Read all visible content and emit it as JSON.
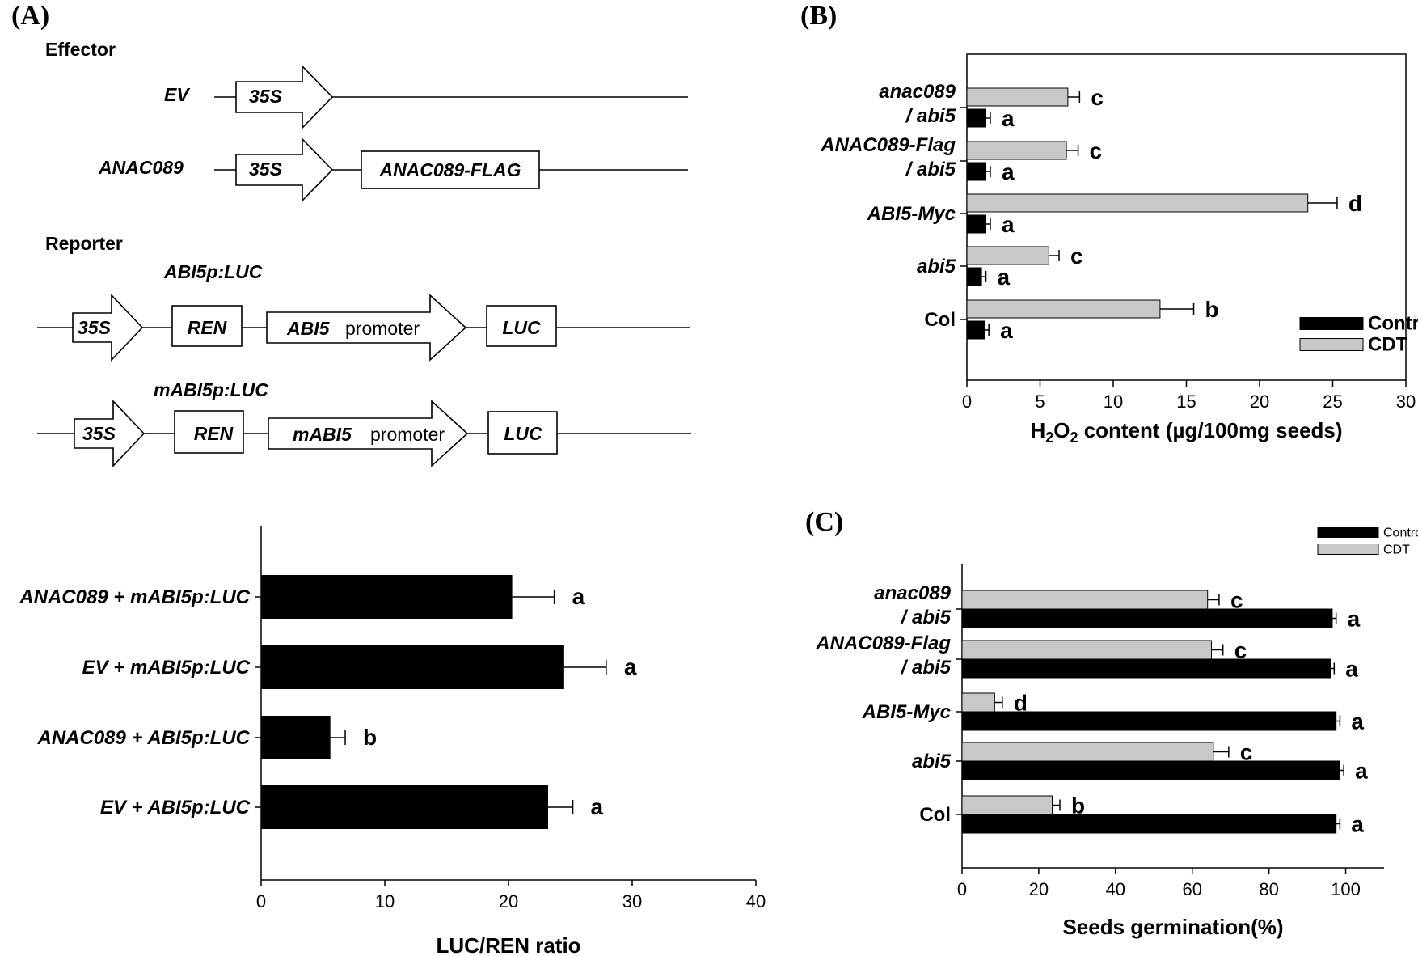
{
  "panels": {
    "a": "(A)",
    "b": "(B)",
    "c": "(C)"
  },
  "diagram": {
    "effector_title": "Effector",
    "reporter_title": "Reporter",
    "ev_label": "EV",
    "anac_label": "ANAC089",
    "promoter_35s": "35S",
    "anac_flag": "ANAC089-FLAG",
    "abi5p_luc_title": "ABI5p:LUC",
    "mabi5p_luc_title": "mABI5p:LUC",
    "ren": "REN",
    "abi5_promoter_italic": "ABI5",
    "mabi5_promoter_italic": "mABI5",
    "promoter_word": "promoter",
    "luc": "LUC"
  },
  "chart_data": [
    {
      "id": "A-bottom",
      "type": "bar",
      "orientation": "horizontal",
      "categories": [
        "ANAC089 + mABI5p:LUC",
        "EV + mABI5p:LUC",
        "ANAC089 + ABI5p:LUC",
        "EV + ABI5p:LUC"
      ],
      "values": [
        20.3,
        24.5,
        5.6,
        23.2
      ],
      "errors": [
        3.4,
        3.4,
        1.2,
        2.0
      ],
      "letters": [
        "a",
        "a",
        "b",
        "a"
      ],
      "xlabel": "LUC/REN ratio",
      "xlim": [
        0,
        40
      ],
      "xticks": [
        0,
        10,
        20,
        30,
        40
      ],
      "color": "#000000"
    },
    {
      "id": "B",
      "type": "bar",
      "orientation": "horizontal",
      "categories": [
        "anac089 / abi5",
        "ANAC089-Flag / abi5",
        "ABI5-Myc",
        "abi5",
        "Col"
      ],
      "category_lines": [
        [
          "anac089",
          "/ abi5"
        ],
        [
          "ANAC089-Flag",
          "/ abi5"
        ],
        [
          "ABI5-Myc"
        ],
        [
          "abi5"
        ],
        [
          "Col"
        ]
      ],
      "category_italic": [
        true,
        true,
        true,
        true,
        false
      ],
      "series": [
        {
          "name": "CDT",
          "color": "#c8c8c8",
          "values": [
            6.9,
            6.8,
            23.3,
            5.6,
            13.2
          ],
          "errors": [
            0.8,
            0.8,
            2.0,
            0.7,
            2.3
          ],
          "letters": [
            "c",
            "c",
            "d",
            "c",
            "b"
          ]
        },
        {
          "name": "Control",
          "color": "#000000",
          "values": [
            1.3,
            1.3,
            1.3,
            1.0,
            1.2
          ],
          "errors": [
            0.3,
            0.3,
            0.3,
            0.3,
            0.3
          ],
          "letters": [
            "a",
            "a",
            "a",
            "a",
            "a"
          ]
        }
      ],
      "legend": [
        "Control",
        "CDT"
      ],
      "xlabel_main": "H",
      "xlabel_sub1": "2",
      "xlabel_mid": "O",
      "xlabel_sub2": "2",
      "xlabel_rest": " content (µg/100mg seeds)",
      "xlim": [
        0,
        30
      ],
      "xticks": [
        0,
        5,
        10,
        15,
        20,
        25,
        30
      ]
    },
    {
      "id": "C",
      "type": "bar",
      "orientation": "horizontal",
      "categories": [
        "anac089 / abi5",
        "ANAC089-Flag / abi5",
        "ABI5-Myc",
        "abi5",
        "Col"
      ],
      "category_lines": [
        [
          "anac089",
          "/ abi5"
        ],
        [
          "ANAC089-Flag",
          "/ abi5"
        ],
        [
          "ABI5-Myc"
        ],
        [
          "abi5"
        ],
        [
          "Col"
        ]
      ],
      "category_italic": [
        true,
        true,
        true,
        true,
        false
      ],
      "series": [
        {
          "name": "CDT",
          "color": "#c8c8c8",
          "values": [
            64,
            65,
            8.5,
            65.5,
            23.5
          ],
          "errors": [
            3,
            3,
            2,
            4,
            2
          ],
          "letters": [
            "c",
            "c",
            "d",
            "c",
            "b"
          ]
        },
        {
          "name": "Control",
          "color": "#000000",
          "values": [
            96.5,
            96,
            97.5,
            98.5,
            97.5
          ],
          "errors": [
            1,
            1,
            1,
            1,
            1
          ],
          "letters": [
            "a",
            "a",
            "a",
            "a",
            "a"
          ]
        }
      ],
      "legend": [
        "Control",
        "CDT"
      ],
      "xlabel": "Seeds germination(%)",
      "xlim": [
        0,
        110
      ],
      "xticks": [
        0,
        20,
        40,
        60,
        80,
        100
      ]
    }
  ]
}
